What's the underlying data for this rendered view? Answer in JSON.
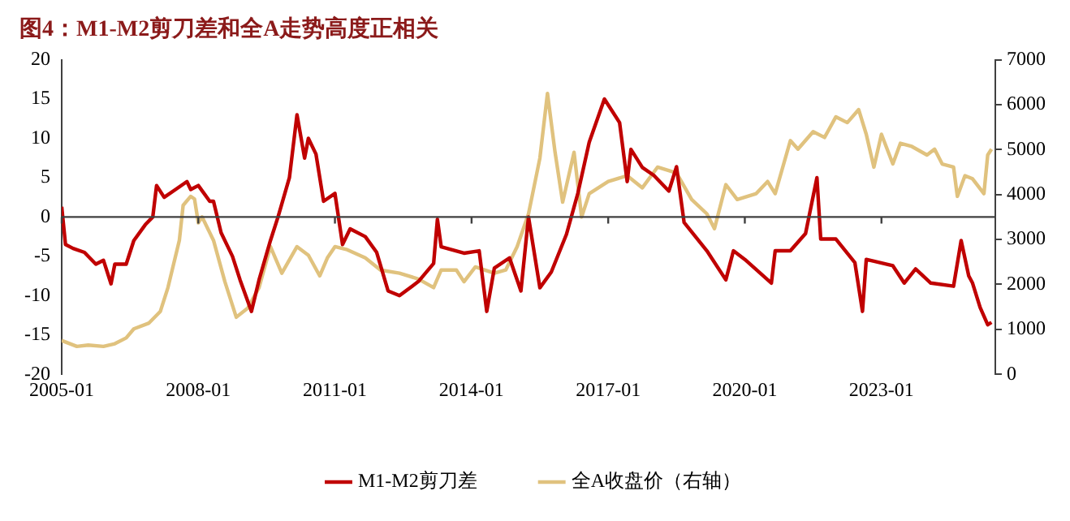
{
  "chart_data": {
    "type": "line",
    "title": "图4：M1-M2剪刀差和全A走势高度正相关",
    "xlim": [
      "2005-01",
      "2025-07"
    ],
    "xticks": [
      "2005-01",
      "2008-01",
      "2011-01",
      "2014-01",
      "2017-01",
      "2020-01",
      "2023-01"
    ],
    "ylim": [
      -20,
      20
    ],
    "yticks": [
      -20,
      -15,
      -10,
      -5,
      0,
      5,
      10,
      15,
      20
    ],
    "y2lim": [
      0,
      7000
    ],
    "y2ticks": [
      0,
      1000,
      2000,
      3000,
      4000,
      5000,
      6000,
      7000
    ],
    "ref_lines": [
      {
        "axis": "y",
        "value": 0,
        "color": "#404040"
      }
    ],
    "legend": "bottom",
    "grid": false,
    "marker": "none",
    "line_style": "solid",
    "series": [
      {
        "name": "M1-M2剪刀差",
        "color": "#c00000",
        "x": [
          "2005-01",
          "2005-02",
          "2005-04",
          "2005-07",
          "2005-10",
          "2005-12",
          "2006-02",
          "2006-03",
          "2006-06",
          "2006-08",
          "2006-11",
          "2007-01",
          "2007-02",
          "2007-04",
          "2007-07",
          "2007-10",
          "2007-11",
          "2008-01",
          "2008-04",
          "2008-05",
          "2008-07",
          "2008-10",
          "2008-12",
          "2009-03",
          "2009-05",
          "2009-08",
          "2009-10",
          "2010-01",
          "2010-03",
          "2010-05",
          "2010-06",
          "2010-08",
          "2010-09",
          "2010-10",
          "2011-01",
          "2011-03",
          "2011-05",
          "2011-09",
          "2011-12",
          "2012-03",
          "2012-06",
          "2012-11",
          "2013-03",
          "2013-04",
          "2013-05",
          "2013-11",
          "2014-03",
          "2014-05",
          "2014-07",
          "2014-11",
          "2015-02",
          "2015-04",
          "2015-07",
          "2015-10",
          "2016-02",
          "2016-05",
          "2016-08",
          "2016-12",
          "2017-04",
          "2017-06",
          "2017-07",
          "2017-10",
          "2018-01",
          "2018-05",
          "2018-07",
          "2018-09",
          "2018-12",
          "2019-03",
          "2019-08",
          "2019-10",
          "2020-01",
          "2020-08",
          "2020-09",
          "2021-01",
          "2021-05",
          "2021-08",
          "2021-09",
          "2022-01",
          "2022-06",
          "2022-08",
          "2022-09",
          "2023-04",
          "2023-07",
          "2023-10",
          "2024-02",
          "2024-08",
          "2024-10",
          "2024-12",
          "2025-01",
          "2025-03",
          "2025-05",
          "2025-06"
        ],
        "values": [
          1.3,
          -3.5,
          -4,
          -4.5,
          -6,
          -5.5,
          -8.5,
          -6,
          -6,
          -3,
          -1,
          0,
          4,
          2.5,
          3.5,
          4.5,
          3.5,
          4,
          2,
          2,
          -2,
          -5,
          -8,
          -12,
          -8,
          -3,
          0,
          5,
          13,
          7.5,
          10,
          8,
          5,
          2,
          3,
          -3.5,
          -1.5,
          -2.5,
          -4.5,
          -9.4,
          -10,
          -8.2,
          -5.9,
          -0.3,
          -3.8,
          -4.6,
          -4.3,
          -12,
          -6.5,
          -5.2,
          -9.4,
          0,
          -9,
          -7,
          -2.2,
          3,
          9.5,
          15,
          12,
          4.5,
          8.6,
          6.3,
          5.3,
          3.3,
          6.4,
          -0.7,
          -2.5,
          -4.3,
          -8,
          -4.3,
          -5.4,
          -8.4,
          -4.3,
          -4.3,
          -2.1,
          5,
          -2.8,
          -2.8,
          -5.8,
          -12,
          -5.4,
          -6.2,
          -8.4,
          -6.6,
          -8.4,
          -8.8,
          -3,
          -7.5,
          -8.4,
          -11.5,
          -13.7,
          -13.4
        ]
      },
      {
        "name": "全A收盘价（右轴）",
        "color": "#e0c27e",
        "axis": "y2",
        "x": [
          "2005-01",
          "2005-05",
          "2005-08",
          "2005-12",
          "2006-03",
          "2006-06",
          "2006-08",
          "2006-12",
          "2007-03",
          "2007-05",
          "2007-08",
          "2007-09",
          "2007-11",
          "2007-12",
          "2008-01",
          "2008-02",
          "2008-05",
          "2008-08",
          "2008-11",
          "2009-02",
          "2009-05",
          "2009-08",
          "2009-11",
          "2010-03",
          "2010-06",
          "2010-09",
          "2010-11",
          "2011-01",
          "2011-04",
          "2011-09",
          "2012-01",
          "2012-06",
          "2012-11",
          "2013-03",
          "2013-05",
          "2013-09",
          "2013-11",
          "2014-02",
          "2014-07",
          "2014-10",
          "2015-01",
          "2015-04",
          "2015-07",
          "2015-09",
          "2015-11",
          "2016-01",
          "2016-04",
          "2016-06",
          "2016-08",
          "2017-01",
          "2017-06",
          "2017-10",
          "2018-02",
          "2018-07",
          "2018-11",
          "2019-03",
          "2019-05",
          "2019-08",
          "2019-11",
          "2020-04",
          "2020-07",
          "2020-09",
          "2021-01",
          "2021-03",
          "2021-07",
          "2021-10",
          "2022-01",
          "2022-04",
          "2022-07",
          "2022-09",
          "2022-11",
          "2023-01",
          "2023-04",
          "2023-06",
          "2023-09",
          "2024-01",
          "2024-03",
          "2024-05",
          "2024-08",
          "2024-09",
          "2024-11",
          "2025-01",
          "2025-04",
          "2025-05",
          "2025-06"
        ],
        "values": [
          750,
          620,
          650,
          620,
          680,
          810,
          1010,
          1140,
          1400,
          1930,
          2980,
          3760,
          3960,
          3900,
          3370,
          3500,
          2980,
          2060,
          1270,
          1470,
          1930,
          2840,
          2250,
          2840,
          2650,
          2190,
          2590,
          2840,
          2780,
          2590,
          2320,
          2250,
          2120,
          1930,
          2320,
          2320,
          2060,
          2390,
          2250,
          2320,
          2840,
          3570,
          4810,
          6250,
          4940,
          3830,
          4940,
          3500,
          4020,
          4290,
          4420,
          4150,
          4610,
          4480,
          3890,
          3570,
          3240,
          4220,
          3890,
          4020,
          4290,
          4020,
          5200,
          5010,
          5400,
          5270,
          5730,
          5600,
          5890,
          5340,
          4610,
          5340,
          4680,
          5140,
          5070,
          4880,
          5010,
          4680,
          4610,
          3960,
          4420,
          4350,
          4020,
          4880,
          5010
        ]
      }
    ]
  }
}
